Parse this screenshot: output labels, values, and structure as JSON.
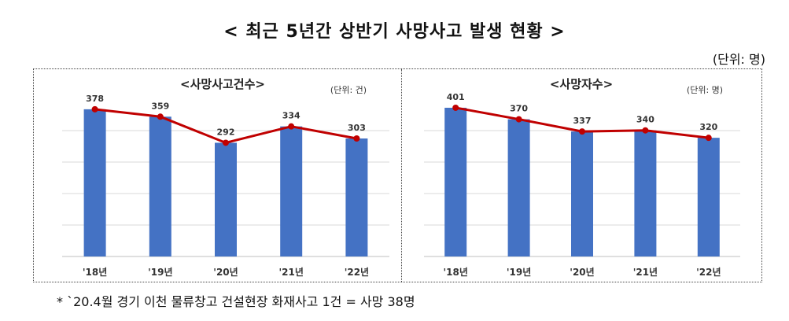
{
  "title": "< 최근 5년간 상반기 사망사고 발생 현황 >",
  "unit_main": "(단위:  명)",
  "footnote": "* `20.4월 경기 이천 물류창고 건설현장 화재사고 1건 = 사망 38명",
  "colors": {
    "bar": "#4472C4",
    "line": "#C00000",
    "grid": "#D9D9D9",
    "text": "#333333"
  },
  "chart_data": [
    {
      "type": "bar",
      "title": "<사망사고건수>",
      "unit": "(단위: 건)",
      "categories": [
        "'18년",
        "'19년",
        "'20년",
        "'21년",
        "'22년"
      ],
      "values": [
        378,
        359,
        292,
        334,
        303
      ],
      "line_overlay": true,
      "ylim": [
        0,
        400
      ],
      "grid": true
    },
    {
      "type": "bar",
      "title": "<사망자수>",
      "unit": "(단위: 명)",
      "categories": [
        "'18년",
        "'19년",
        "'20년",
        "'21년",
        "'22년"
      ],
      "values": [
        401,
        370,
        337,
        340,
        320
      ],
      "line_overlay": true,
      "ylim": [
        0,
        420
      ],
      "grid": true
    }
  ]
}
